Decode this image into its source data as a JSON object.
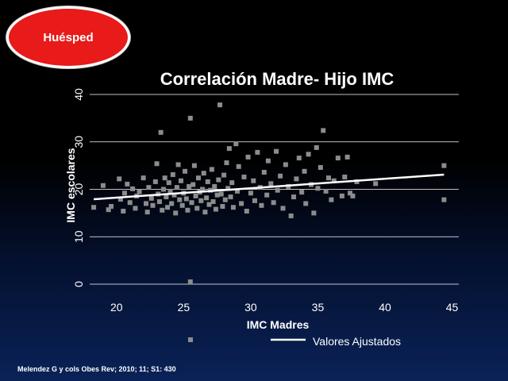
{
  "badge": {
    "label": "Huésped"
  },
  "citation": "Melendez G y cols  Obes Rev; 2010; 11; S1: 430",
  "colors": {
    "background": "#000000",
    "badge": "#e81a1a",
    "points": "#8c8c8c",
    "fit_line": "#ffffff",
    "text": "#ffffff"
  },
  "chart_data": {
    "type": "scatter",
    "title": "Correlación Madre- Hijo IMC",
    "xlabel": "IMC Madres",
    "ylabel": "IMC escolares",
    "xlim": [
      18,
      45.5
    ],
    "ylim": [
      0,
      40
    ],
    "xticks": [
      "20",
      "25",
      "30",
      "35",
      "40",
      "45"
    ],
    "yticks": [
      "0",
      "10",
      "20",
      "30",
      "40"
    ],
    "grid": "horizontal",
    "legend_position": "bottom",
    "fit_line": {
      "name": "Valores Ajustados",
      "start": [
        18.3,
        17.9
      ],
      "end": [
        44.4,
        23.1
      ]
    },
    "points": [
      [
        18.3,
        16.2
      ],
      [
        19.0,
        20.8
      ],
      [
        19.4,
        15.7
      ],
      [
        19.6,
        16.4
      ],
      [
        20.2,
        22.2
      ],
      [
        20.3,
        17.9
      ],
      [
        20.5,
        15.4
      ],
      [
        20.6,
        19.2
      ],
      [
        20.8,
        21.1
      ],
      [
        21.0,
        17.2
      ],
      [
        21.2,
        20.1
      ],
      [
        21.4,
        16.0
      ],
      [
        21.5,
        18.6
      ],
      [
        21.7,
        19.5
      ],
      [
        22.0,
        22.4
      ],
      [
        22.2,
        17.0
      ],
      [
        22.3,
        15.2
      ],
      [
        22.4,
        20.4
      ],
      [
        22.6,
        18.1
      ],
      [
        22.7,
        16.6
      ],
      [
        22.9,
        21.6
      ],
      [
        23.0,
        25.4
      ],
      [
        23.1,
        19.0
      ],
      [
        23.2,
        17.4
      ],
      [
        23.3,
        32.0
      ],
      [
        23.4,
        15.6
      ],
      [
        23.5,
        20.0
      ],
      [
        23.6,
        22.4
      ],
      [
        23.7,
        18.4
      ],
      [
        23.8,
        16.2
      ],
      [
        23.9,
        21.4
      ],
      [
        24.0,
        19.6
      ],
      [
        24.1,
        17.0
      ],
      [
        24.2,
        23.1
      ],
      [
        24.3,
        18.8
      ],
      [
        24.4,
        15.0
      ],
      [
        24.5,
        20.4
      ],
      [
        24.6,
        25.2
      ],
      [
        24.7,
        17.8
      ],
      [
        24.8,
        21.8
      ],
      [
        24.9,
        16.6
      ],
      [
        25.0,
        19.2
      ],
      [
        25.1,
        23.8
      ],
      [
        25.2,
        18.0
      ],
      [
        25.3,
        15.6
      ],
      [
        25.4,
        20.6
      ],
      [
        25.5,
        35.0
      ],
      [
        25.5,
        0.5
      ],
      [
        25.6,
        17.2
      ],
      [
        25.7,
        21.0
      ],
      [
        25.8,
        25.0
      ],
      [
        25.9,
        18.6
      ],
      [
        26.0,
        16.0
      ],
      [
        26.1,
        22.4
      ],
      [
        26.2,
        19.4
      ],
      [
        26.3,
        17.6
      ],
      [
        26.4,
        20.0
      ],
      [
        26.5,
        23.4
      ],
      [
        26.6,
        15.2
      ],
      [
        26.7,
        18.2
      ],
      [
        26.8,
        21.6
      ],
      [
        26.9,
        16.8
      ],
      [
        27.0,
        19.8
      ],
      [
        27.1,
        24.2
      ],
      [
        27.2,
        17.4
      ],
      [
        27.3,
        20.6
      ],
      [
        27.4,
        15.8
      ],
      [
        27.5,
        18.8
      ],
      [
        27.6,
        22.0
      ],
      [
        27.7,
        37.8
      ],
      [
        27.8,
        19.0
      ],
      [
        27.9,
        16.4
      ],
      [
        28.0,
        23.0
      ],
      [
        28.1,
        17.8
      ],
      [
        28.2,
        25.6
      ],
      [
        28.3,
        20.2
      ],
      [
        28.4,
        28.6
      ],
      [
        28.5,
        18.4
      ],
      [
        28.6,
        21.4
      ],
      [
        28.7,
        16.2
      ],
      [
        28.9,
        29.6
      ],
      [
        29.0,
        19.6
      ],
      [
        29.1,
        24.8
      ],
      [
        29.3,
        17.0
      ],
      [
        29.5,
        22.6
      ],
      [
        29.7,
        15.4
      ],
      [
        29.8,
        26.8
      ],
      [
        30.0,
        19.2
      ],
      [
        30.2,
        21.8
      ],
      [
        30.3,
        17.6
      ],
      [
        30.5,
        27.8
      ],
      [
        30.7,
        20.4
      ],
      [
        30.8,
        16.6
      ],
      [
        31.0,
        23.6
      ],
      [
        31.2,
        18.8
      ],
      [
        31.3,
        26.0
      ],
      [
        31.5,
        21.2
      ],
      [
        31.7,
        17.2
      ],
      [
        31.9,
        28.0
      ],
      [
        32.0,
        19.8
      ],
      [
        32.2,
        22.8
      ],
      [
        32.4,
        16.0
      ],
      [
        32.6,
        25.2
      ],
      [
        32.8,
        20.6
      ],
      [
        33.0,
        14.4
      ],
      [
        33.2,
        18.4
      ],
      [
        33.4,
        22.2
      ],
      [
        33.6,
        26.6
      ],
      [
        33.8,
        19.4
      ],
      [
        34.0,
        23.8
      ],
      [
        34.1,
        17.0
      ],
      [
        34.3,
        27.4
      ],
      [
        34.5,
        21.0
      ],
      [
        34.7,
        15.0
      ],
      [
        34.9,
        28.8
      ],
      [
        35.0,
        20.2
      ],
      [
        35.2,
        24.6
      ],
      [
        35.4,
        32.4
      ],
      [
        35.6,
        19.6
      ],
      [
        35.8,
        22.4
      ],
      [
        36.0,
        17.8
      ],
      [
        36.2,
        21.8
      ],
      [
        36.5,
        26.6
      ],
      [
        36.8,
        18.6
      ],
      [
        37.0,
        22.6
      ],
      [
        37.2,
        26.8
      ],
      [
        37.4,
        19.2
      ],
      [
        37.6,
        18.6
      ],
      [
        37.9,
        21.6
      ],
      [
        39.3,
        21.2
      ],
      [
        44.4,
        25.0
      ],
      [
        44.4,
        17.8
      ]
    ]
  }
}
